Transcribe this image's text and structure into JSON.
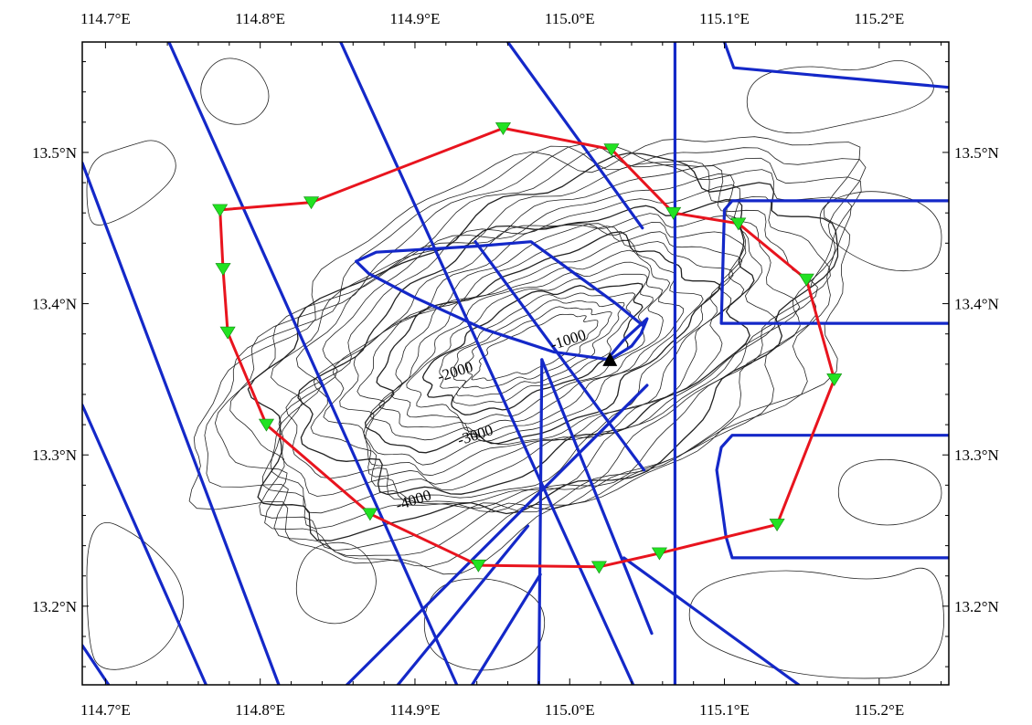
{
  "map": {
    "extent": {
      "lon": [
        114.685,
        115.245
      ],
      "lat": [
        13.148,
        13.573
      ]
    },
    "colors": {
      "frame": "#000000",
      "contour": "#222222",
      "survey_line": "#1428c8",
      "station_ring": "#e8141e",
      "station": "#22e222",
      "center": "#000000"
    },
    "axes": {
      "lon_ticks": [
        {
          "value": 114.7,
          "label": "114.7°E"
        },
        {
          "value": 114.8,
          "label": "114.8°E"
        },
        {
          "value": 114.9,
          "label": "114.9°E"
        },
        {
          "value": 115.0,
          "label": "115.0°E"
        },
        {
          "value": 115.1,
          "label": "115.1°E"
        },
        {
          "value": 115.2,
          "label": "115.2°E"
        }
      ],
      "lat_ticks": [
        {
          "value": 13.2,
          "label": "13.2°N"
        },
        {
          "value": 13.3,
          "label": "13.3°N"
        },
        {
          "value": 13.4,
          "label": "13.4°N"
        },
        {
          "value": 13.5,
          "label": "13.5°N"
        }
      ]
    },
    "contour_labels": [
      {
        "text": "-1000",
        "lon": 115.0,
        "lat": 13.373
      },
      {
        "text": "-2000",
        "lon": 114.927,
        "lat": 13.352
      },
      {
        "text": "-3000",
        "lon": 114.94,
        "lat": 13.31
      },
      {
        "text": "-4000",
        "lon": 114.9,
        "lat": 13.267
      }
    ],
    "center_marker": {
      "lon": 115.026,
      "lat": 13.363
    },
    "stations": [
      {
        "lon": 114.957,
        "lat": 13.516
      },
      {
        "lon": 115.027,
        "lat": 13.502
      },
      {
        "lon": 115.067,
        "lat": 13.46
      },
      {
        "lon": 115.109,
        "lat": 13.453
      },
      {
        "lon": 115.153,
        "lat": 13.416
      },
      {
        "lon": 115.171,
        "lat": 13.35
      },
      {
        "lon": 115.134,
        "lat": 13.254
      },
      {
        "lon": 115.058,
        "lat": 13.235
      },
      {
        "lon": 115.019,
        "lat": 13.226
      },
      {
        "lon": 114.941,
        "lat": 13.227
      },
      {
        "lon": 114.871,
        "lat": 13.261
      },
      {
        "lon": 114.804,
        "lat": 13.32
      },
      {
        "lon": 114.779,
        "lat": 13.381
      },
      {
        "lon": 114.776,
        "lat": 13.423
      },
      {
        "lon": 114.774,
        "lat": 13.462
      },
      {
        "lon": 114.833,
        "lat": 13.467
      }
    ],
    "survey_lines": [
      [
        [
          114.741,
          13.573
        ],
        [
          114.927,
          13.148
        ]
      ],
      [
        [
          114.685,
          13.493
        ],
        [
          114.812,
          13.148
        ]
      ],
      [
        [
          114.685,
          13.333
        ],
        [
          114.765,
          13.148
        ]
      ],
      [
        [
          114.685,
          13.174
        ],
        [
          114.702,
          13.148
        ]
      ],
      [
        [
          114.852,
          13.573
        ],
        [
          115.041,
          13.148
        ]
      ],
      [
        [
          114.96,
          13.573
        ],
        [
          115.047,
          13.45
        ]
      ],
      [
        [
          115.068,
          13.573
        ],
        [
          115.068,
          13.148
        ]
      ],
      [
        [
          114.973,
          13.253
        ],
        [
          114.889,
          13.148
        ]
      ],
      [
        [
          114.981,
          13.221
        ],
        [
          114.937,
          13.148
        ]
      ],
      [
        [
          115.035,
          13.232
        ],
        [
          115.148,
          13.148
        ]
      ],
      [
        [
          114.856,
          13.148
        ],
        [
          115.05,
          13.346
        ]
      ],
      [
        [
          114.98,
          13.148
        ],
        [
          114.982,
          13.363
        ]
      ],
      [
        [
          114.982,
          13.363
        ],
        [
          115.053,
          13.182
        ]
      ],
      [
        [
          114.939,
          13.441
        ],
        [
          115.048,
          13.29
        ]
      ],
      [
        [
          115.1,
          13.573
        ],
        [
          115.106,
          13.556
        ],
        [
          115.245,
          13.543
        ]
      ],
      [
        [
          115.245,
          13.468
        ],
        [
          115.105,
          13.468
        ],
        [
          115.1,
          13.462
        ],
        [
          115.098,
          13.387
        ],
        [
          115.245,
          13.387
        ]
      ],
      [
        [
          115.245,
          13.313
        ],
        [
          115.105,
          13.313
        ],
        [
          115.098,
          13.305
        ],
        [
          115.095,
          13.29
        ],
        [
          115.101,
          13.246
        ],
        [
          115.105,
          13.232
        ],
        [
          115.245,
          13.232
        ]
      ],
      [
        [
          115.024,
          13.363
        ],
        [
          115.035,
          13.376
        ],
        [
          115.05,
          13.39
        ],
        [
          115.046,
          13.38
        ],
        [
          115.04,
          13.372
        ],
        [
          115.026,
          13.363
        ],
        [
          114.99,
          13.368
        ],
        [
          114.945,
          13.383
        ],
        [
          114.9,
          13.404
        ],
        [
          114.87,
          13.42
        ],
        [
          114.862,
          13.428
        ],
        [
          114.875,
          13.434
        ],
        [
          114.94,
          13.438
        ],
        [
          114.975,
          13.441
        ],
        [
          115.03,
          13.4
        ],
        [
          115.048,
          13.385
        ]
      ]
    ]
  }
}
